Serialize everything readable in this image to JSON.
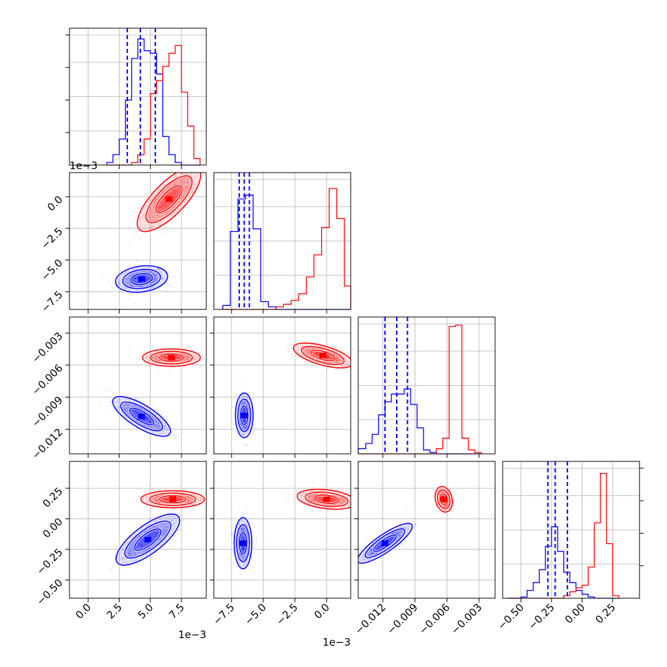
{
  "chart_data": {
    "type": "corner",
    "title": "",
    "grid": true,
    "colors": {
      "blue": "#0000ff",
      "red": "#ff0000"
    },
    "series": [
      {
        "color": "blue",
        "quantiles": [
          [
            0.00315,
            0.0042,
            0.0054
          ],
          [
            -0.0069,
            -0.0065,
            -0.0061
          ],
          [
            -0.0118,
            -0.0107,
            -0.0097
          ],
          [
            -0.28,
            -0.22,
            -0.12
          ]
        ]
      },
      {
        "color": "red"
      }
    ],
    "params": [
      {
        "range": [
          -0.0015,
          0.0095
        ],
        "ticks": [
          0.0,
          0.0025,
          0.005,
          0.0075
        ],
        "tick_labels": [
          "0.0",
          "2.5",
          "5.0",
          "7.5"
        ],
        "offset": "1e−3"
      },
      {
        "range": [
          -0.0089,
          0.0019
        ],
        "ticks": [
          -0.0075,
          -0.005,
          -0.0025,
          0.0
        ],
        "tick_labels": [
          "−7.5",
          "−5.0",
          "−2.5",
          "0.0"
        ],
        "offset": "1e−3"
      },
      {
        "range": [
          -0.0143,
          -0.0015
        ],
        "ticks": [
          -0.012,
          -0.009,
          -0.006,
          -0.003
        ],
        "tick_labels": [
          "−0.012",
          "−0.009",
          "−0.006",
          "−0.003"
        ],
        "offset": ""
      },
      {
        "range": [
          -0.65,
          0.47
        ],
        "ticks": [
          -0.5,
          -0.25,
          0.0,
          0.25
        ],
        "tick_labels": [
          "−0.50",
          "−0.25",
          "0.00",
          "0.25"
        ],
        "offset": ""
      }
    ],
    "histograms": [
      {
        "param": 0,
        "max": 1.0,
        "bins_x": [
          0.0015,
          0.002,
          0.0025,
          0.003,
          0.0035,
          0.004,
          0.0045,
          0.005,
          0.0055,
          0.006,
          0.0065,
          0.007,
          0.0075,
          0.008,
          0.0085,
          0.009
        ],
        "blue": [
          0.02,
          0.08,
          0.2,
          0.5,
          0.82,
          0.97,
          0.88,
          0.86,
          0.7,
          0.22,
          0.08,
          0.02,
          0,
          0,
          0
        ],
        "red": [
          0,
          0,
          0,
          0,
          0.02,
          0.08,
          0.2,
          0.55,
          0.65,
          0.76,
          0.86,
          0.92,
          0.56,
          0.3,
          0.05
        ]
      },
      {
        "param": 1,
        "max": 1.0,
        "bins_x": [
          -0.0082,
          -0.0076,
          -0.007,
          -0.0064,
          -0.0058,
          -0.0052,
          -0.0046,
          -0.004,
          -0.0034,
          -0.0028,
          -0.0022,
          -0.0016,
          -0.001,
          -0.0004,
          0.0002,
          0.0008,
          0.0014,
          0.0019
        ],
        "blue": [
          0.03,
          0.6,
          0.85,
          0.88,
          0.62,
          0.06,
          0.02,
          0,
          0,
          0,
          0,
          0,
          0,
          0,
          0,
          0,
          0
        ],
        "red": [
          0,
          0,
          0,
          0,
          0,
          0,
          0,
          0.02,
          0.04,
          0.07,
          0.12,
          0.25,
          0.42,
          0.63,
          0.93,
          0.7,
          0.18
        ]
      },
      {
        "param": 2,
        "max": 1.0,
        "bins_x": [
          -0.0143,
          -0.0136,
          -0.013,
          -0.0124,
          -0.0118,
          -0.0112,
          -0.0106,
          -0.01,
          -0.0094,
          -0.0088,
          -0.0082,
          -0.0076,
          -0.007,
          -0.0064,
          -0.0058,
          -0.0052,
          -0.0046,
          -0.004,
          -0.0034,
          -0.0028
        ],
        "blue": [
          0.04,
          0.08,
          0.15,
          0.3,
          0.4,
          0.46,
          0.46,
          0.5,
          0.38,
          0.2,
          0.03,
          0.01,
          0,
          0,
          0,
          0,
          0,
          0,
          0
        ],
        "red": [
          0,
          0,
          0,
          0,
          0,
          0,
          0,
          0,
          0,
          0,
          0,
          0,
          0.04,
          0.12,
          0.98,
          0.99,
          0.12,
          0.03,
          0.01
        ]
      },
      {
        "param": 3,
        "max": 1.0,
        "bins_x": [
          -0.6,
          -0.55,
          -0.5,
          -0.45,
          -0.4,
          -0.35,
          -0.3,
          -0.25,
          -0.2,
          -0.15,
          -0.1,
          -0.05,
          0.0,
          0.05,
          0.1,
          0.15,
          0.2,
          0.25,
          0.3
        ],
        "blue": [
          0,
          0,
          0.01,
          0.06,
          0.12,
          0.22,
          0.4,
          0.55,
          0.36,
          0.2,
          0.12,
          0.06,
          0.03,
          0.01,
          0,
          0,
          0,
          0
        ],
        "red": [
          0,
          0,
          0,
          0,
          0,
          0,
          0,
          0,
          0,
          0.02,
          0.05,
          0.08,
          0.1,
          0.24,
          0.58,
          0.96,
          0.42,
          0.02
        ]
      }
    ],
    "scatter_panels": [
      {
        "x": 0,
        "y": 1,
        "blue": {
          "mean": [
            0.0043,
            -0.0065
          ],
          "sd": [
            0.0009,
            0.00045
          ],
          "rho": 0.2
        },
        "red": {
          "mean": [
            0.0065,
            -0.0002
          ],
          "sd": [
            0.0011,
            0.0011
          ],
          "rho": 0.75
        }
      },
      {
        "x": 0,
        "y": 2,
        "blue": {
          "mean": [
            0.0043,
            -0.0108
          ],
          "sd": [
            0.001,
            0.0008
          ],
          "rho": -0.75
        },
        "red": {
          "mean": [
            0.0067,
            -0.0053
          ],
          "sd": [
            0.001,
            0.00035
          ],
          "rho": 0.0
        }
      },
      {
        "x": 1,
        "y": 2,
        "blue": {
          "mean": [
            -0.0065,
            -0.0107
          ],
          "sd": [
            0.0003,
            0.0009
          ],
          "rho": 0.0
        },
        "red": {
          "mean": [
            -0.0003,
            -0.0051
          ],
          "sd": [
            0.001,
            0.0005
          ],
          "rho": -0.6
        }
      },
      {
        "x": 0,
        "y": 3,
        "blue": {
          "mean": [
            0.0048,
            -0.17
          ],
          "sd": [
            0.0011,
            0.09
          ],
          "rho": 0.75
        },
        "red": {
          "mean": [
            0.0068,
            0.16
          ],
          "sd": [
            0.0011,
            0.03
          ],
          "rho": 0.0
        }
      },
      {
        "x": 1,
        "y": 3,
        "blue": {
          "mean": [
            -0.0066,
            -0.2
          ],
          "sd": [
            0.0003,
            0.09
          ],
          "rho": 0.0
        },
        "red": {
          "mean": [
            0.0,
            0.16
          ],
          "sd": [
            0.001,
            0.035
          ],
          "rho": -0.3
        }
      },
      {
        "x": 2,
        "y": 3,
        "blue": {
          "mean": [
            -0.0118,
            -0.2
          ],
          "sd": [
            0.0011,
            0.07
          ],
          "rho": 0.85
        },
        "red": {
          "mean": [
            -0.0063,
            0.16
          ],
          "sd": [
            0.00035,
            0.045
          ],
          "rho": -0.2
        }
      }
    ]
  }
}
